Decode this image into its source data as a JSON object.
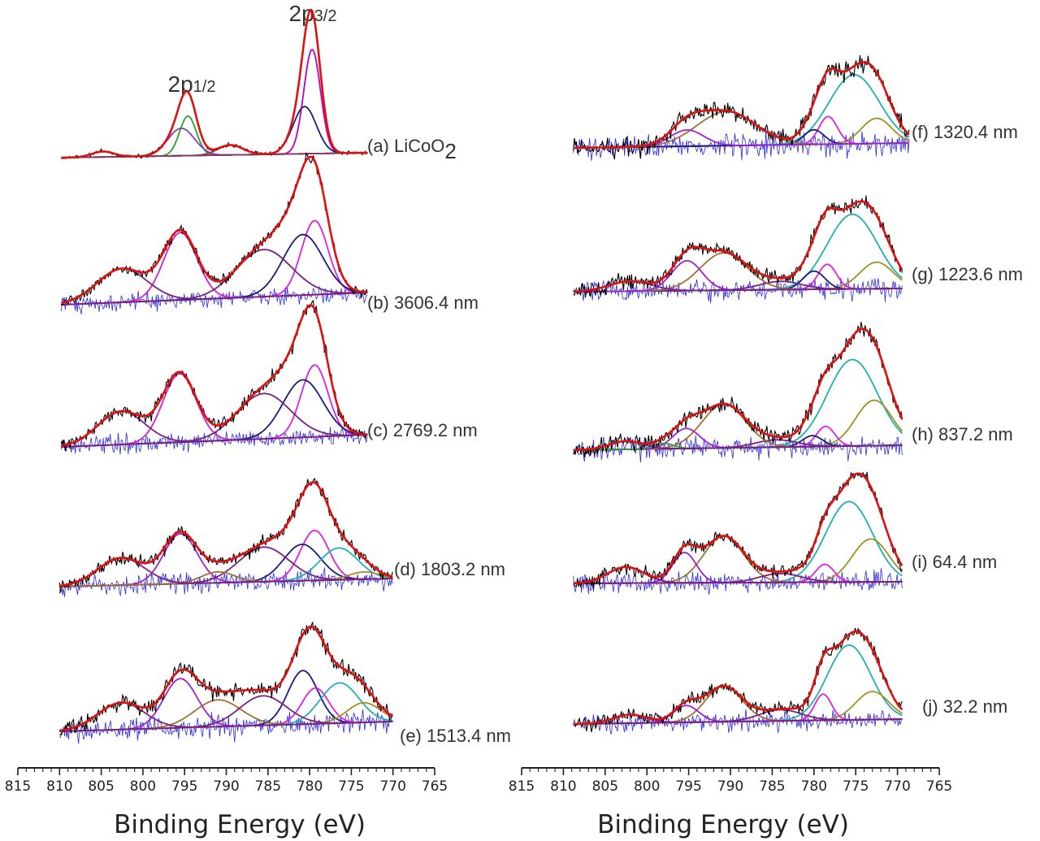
{
  "chart_data": [
    {
      "type": "line",
      "panel": "left",
      "xlabel": "Binding Energy (eV)",
      "xlim": [
        815,
        765
      ],
      "x_reversed": true,
      "xticks": [
        815,
        810,
        805,
        800,
        795,
        790,
        785,
        780,
        775,
        770,
        765
      ],
      "peak_labels": [
        {
          "text": "2p",
          "sub": "1/2",
          "x": 795
        },
        {
          "text": "2p",
          "sub": "3/2",
          "x": 780
        }
      ],
      "spectra": [
        {
          "label": "(a) LiCoO",
          "label_sub": "2",
          "x_start": 809.8,
          "x_end": 773,
          "fit_components": [
            {
              "color": "#c000c0",
              "center": 779.7,
              "height": 0.95,
              "width": 1.0
            },
            {
              "color": "#1a1a80",
              "center": 780.6,
              "height": 0.43,
              "width": 1.4
            },
            {
              "color": "#2ca02c",
              "center": 794.6,
              "height": 0.36,
              "width": 1.0
            },
            {
              "color": "#8040c0",
              "center": 795.4,
              "height": 0.25,
              "width": 1.6
            },
            {
              "color": "#8a3a60",
              "center": 789.5,
              "height": 0.09,
              "width": 1.5
            },
            {
              "color": "#8a3a60",
              "center": 804.8,
              "height": 0.05,
              "width": 1.3
            }
          ]
        },
        {
          "label": "(b) 3606.4 nm",
          "x_start": 809.8,
          "x_end": 773,
          "fit_components": [
            {
              "color": "#e020e0",
              "center": 779.4,
              "height": 0.66,
              "width": 1.6
            },
            {
              "color": "#1a1a80",
              "center": 780.8,
              "height": 0.54,
              "width": 2.4
            },
            {
              "color": "#d020d0",
              "center": 795.5,
              "height": 0.6,
              "width": 2.0
            },
            {
              "color": "#7a2080",
              "center": 785.5,
              "height": 0.42,
              "width": 3.3
            },
            {
              "color": "#7a2080",
              "center": 802.5,
              "height": 0.3,
              "width": 3.0
            }
          ]
        },
        {
          "label": "(c) 2769.2 nm",
          "x_start": 809.8,
          "x_end": 773,
          "fit_components": [
            {
              "color": "#e020e0",
              "center": 779.4,
              "height": 0.65,
              "width": 1.6
            },
            {
              "color": "#1a1a80",
              "center": 780.8,
              "height": 0.52,
              "width": 2.4
            },
            {
              "color": "#d020d0",
              "center": 795.6,
              "height": 0.62,
              "width": 2.0
            },
            {
              "color": "#7a2080",
              "center": 785.5,
              "height": 0.41,
              "width": 3.2
            },
            {
              "color": "#7a2080",
              "center": 802.6,
              "height": 0.3,
              "width": 2.8
            }
          ]
        },
        {
          "label": "(d) 1803.2 nm",
          "x_start": 810,
          "x_end": 770,
          "fit_components": [
            {
              "color": "#e020e0",
              "center": 779.4,
              "height": 0.55,
              "width": 1.7
            },
            {
              "color": "#1a1a80",
              "center": 780.9,
              "height": 0.4,
              "width": 2.2
            },
            {
              "color": "#20b0b0",
              "center": 776.5,
              "height": 0.35,
              "width": 2.3
            },
            {
              "color": "#a09020",
              "center": 773.5,
              "height": 0.08,
              "width": 1.8
            },
            {
              "color": "#a020d0",
              "center": 795.5,
              "height": 0.55,
              "width": 2.0
            },
            {
              "color": "#7a2080",
              "center": 785.5,
              "height": 0.38,
              "width": 3.0
            },
            {
              "color": "#a07030",
              "center": 791.0,
              "height": 0.12,
              "width": 2.0
            },
            {
              "color": "#7a2080",
              "center": 802.6,
              "height": 0.3,
              "width": 2.8
            }
          ]
        },
        {
          "label": "(e) 1513.4 nm",
          "x_start": 810,
          "x_end": 770,
          "fit_components": [
            {
              "color": "#1a1a80",
              "center": 780.8,
              "height": 0.6,
              "width": 1.8
            },
            {
              "color": "#e020e0",
              "center": 779.3,
              "height": 0.4,
              "width": 1.6
            },
            {
              "color": "#20b0b0",
              "center": 776.4,
              "height": 0.45,
              "width": 2.3
            },
            {
              "color": "#a09020",
              "center": 773.5,
              "height": 0.22,
              "width": 2.0
            },
            {
              "color": "#a020d0",
              "center": 795.5,
              "height": 0.55,
              "width": 2.0
            },
            {
              "color": "#a07030",
              "center": 791.0,
              "height": 0.3,
              "width": 2.8
            },
            {
              "color": "#7a2080",
              "center": 785.6,
              "height": 0.33,
              "width": 2.8
            },
            {
              "color": "#7a2080",
              "center": 802.6,
              "height": 0.3,
              "width": 2.8
            }
          ]
        }
      ]
    },
    {
      "type": "line",
      "panel": "right",
      "xlabel": "Binding Energy (eV)",
      "xlim": [
        815,
        765
      ],
      "x_reversed": true,
      "xticks": [
        815,
        810,
        805,
        800,
        795,
        790,
        785,
        780,
        775,
        770,
        765
      ],
      "spectra": [
        {
          "label": "(f) 1320.4 nm",
          "x_start": 808.8,
          "x_end": 768.6,
          "fit_components": [
            {
              "color": "#20b0b0",
              "center": 775.2,
              "height": 0.85,
              "width": 3.0
            },
            {
              "color": "#a09020",
              "center": 772.5,
              "height": 0.31,
              "width": 1.8
            },
            {
              "color": "#e020e0",
              "center": 778.3,
              "height": 0.34,
              "width": 1.1
            },
            {
              "color": "#1a1a80",
              "center": 780.0,
              "height": 0.18,
              "width": 1.2
            },
            {
              "color": "#a07030",
              "center": 790.5,
              "height": 0.42,
              "width": 3.5
            },
            {
              "color": "#a020d0",
              "center": 795.2,
              "height": 0.2,
              "width": 2.0
            }
          ]
        },
        {
          "label": "(g) 1223.6 nm",
          "x_start": 808.8,
          "x_end": 769.4,
          "fit_components": [
            {
              "color": "#20b0b0",
              "center": 775.4,
              "height": 0.9,
              "width": 3.0
            },
            {
              "color": "#a09020",
              "center": 772.5,
              "height": 0.32,
              "width": 2.0
            },
            {
              "color": "#e020e0",
              "center": 778.4,
              "height": 0.3,
              "width": 1.1
            },
            {
              "color": "#1a1a80",
              "center": 780.0,
              "height": 0.22,
              "width": 1.3
            },
            {
              "color": "#7a2080",
              "center": 784.0,
              "height": 0.1,
              "width": 2.5
            },
            {
              "color": "#a07030",
              "center": 790.8,
              "height": 0.45,
              "width": 2.8
            },
            {
              "color": "#a020d0",
              "center": 795.2,
              "height": 0.36,
              "width": 1.8
            },
            {
              "color": "#7a2080",
              "center": 802.0,
              "height": 0.12,
              "width": 2.5
            }
          ]
        },
        {
          "label": "(h) 837.2 nm",
          "x_start": 808.8,
          "x_end": 769.4,
          "fit_components": [
            {
              "color": "#20b0b0",
              "center": 775.4,
              "height": 0.95,
              "width": 3.0
            },
            {
              "color": "#a09020",
              "center": 772.8,
              "height": 0.5,
              "width": 2.2
            },
            {
              "color": "#e020e0",
              "center": 778.6,
              "height": 0.22,
              "width": 1.1
            },
            {
              "color": "#1a1a80",
              "center": 780.2,
              "height": 0.12,
              "width": 1.2
            },
            {
              "color": "#7a2080",
              "center": 784.5,
              "height": 0.08,
              "width": 2.5
            },
            {
              "color": "#a07030",
              "center": 790.8,
              "height": 0.48,
              "width": 2.6
            },
            {
              "color": "#a020d0",
              "center": 795.3,
              "height": 0.22,
              "width": 1.6
            },
            {
              "color": "#2ca02c",
              "center": 798.0,
              "height": 0.06,
              "width": 1.2
            },
            {
              "color": "#7a2080",
              "center": 802.5,
              "height": 0.09,
              "width": 2.0
            }
          ]
        },
        {
          "label": "(i) 64.4 nm",
          "x_start": 808.8,
          "x_end": 769.4,
          "fit_components": [
            {
              "color": "#20b0b0",
              "center": 775.8,
              "height": 0.9,
              "width": 2.8
            },
            {
              "color": "#a09020",
              "center": 773.2,
              "height": 0.48,
              "width": 2.2
            },
            {
              "color": "#e020e0",
              "center": 778.7,
              "height": 0.2,
              "width": 1.1
            },
            {
              "color": "#a07030",
              "center": 790.8,
              "height": 0.52,
              "width": 2.4
            },
            {
              "color": "#a020d0",
              "center": 795.5,
              "height": 0.34,
              "width": 1.4
            },
            {
              "color": "#7a2080",
              "center": 784.0,
              "height": 0.1,
              "width": 2.5
            },
            {
              "color": "#7a2080",
              "center": 802.5,
              "height": 0.18,
              "width": 2.2
            }
          ]
        },
        {
          "label": "(j) 32.2 nm",
          "x_start": 808.8,
          "x_end": 769.4,
          "fit_components": [
            {
              "color": "#20b0b0",
              "center": 775.8,
              "height": 0.8,
              "width": 2.6
            },
            {
              "color": "#a09020",
              "center": 773.0,
              "height": 0.3,
              "width": 2.0
            },
            {
              "color": "#e020e0",
              "center": 778.9,
              "height": 0.28,
              "width": 1.0
            },
            {
              "color": "#a07030",
              "center": 790.8,
              "height": 0.38,
              "width": 2.2
            },
            {
              "color": "#a020d0",
              "center": 795.3,
              "height": 0.18,
              "width": 1.5
            },
            {
              "color": "#7a2080",
              "center": 784.0,
              "height": 0.12,
              "width": 2.5
            },
            {
              "color": "#7a2080",
              "center": 802.0,
              "height": 0.09,
              "width": 2.0
            }
          ]
        }
      ]
    }
  ]
}
